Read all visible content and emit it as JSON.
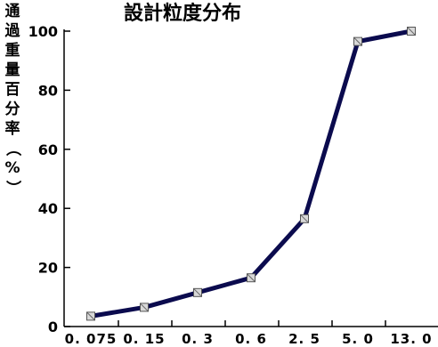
{
  "chart_data": {
    "type": "line",
    "title": "設計粒度分布",
    "xlabel": "",
    "ylabel": "通過重量百分率（%）",
    "categories": [
      "0.075",
      "0.15",
      "0.3",
      "0.6",
      "2.5",
      "5.0",
      "13.0"
    ],
    "x_tick_labels": [
      "0. 075",
      "0. 15",
      "0. 3",
      "0. 6",
      "2. 5",
      "5. 0",
      "13. 0"
    ],
    "ylim": [
      0,
      100
    ],
    "yticks": [
      0,
      20,
      40,
      60,
      80,
      100
    ],
    "grid": false,
    "series": [
      {
        "values": [
          3.5,
          6.5,
          11.5,
          16.5,
          36.5,
          96.5,
          100
        ],
        "color": "#0b0b4e"
      }
    ]
  }
}
